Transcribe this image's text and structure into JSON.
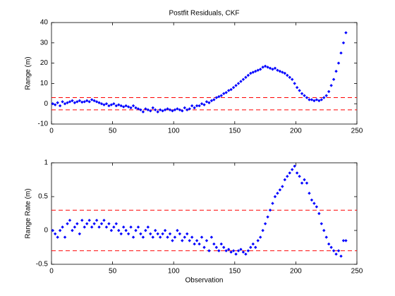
{
  "chart_data": [
    {
      "type": "scatter",
      "title": "Postfit Residuals, CKF",
      "y_label": "Range (m)",
      "x": [
        1,
        3,
        5,
        7,
        9,
        11,
        13,
        15,
        17,
        19,
        21,
        23,
        25,
        27,
        29,
        31,
        33,
        35,
        37,
        39,
        41,
        43,
        45,
        47,
        49,
        51,
        53,
        55,
        57,
        59,
        61,
        63,
        65,
        67,
        69,
        71,
        73,
        75,
        77,
        79,
        81,
        83,
        85,
        87,
        89,
        91,
        93,
        95,
        97,
        99,
        101,
        103,
        105,
        107,
        109,
        111,
        113,
        115,
        117,
        119,
        121,
        123,
        125,
        127,
        129,
        131,
        133,
        135,
        137,
        139,
        141,
        143,
        145,
        147,
        149,
        151,
        153,
        155,
        157,
        159,
        161,
        163,
        165,
        167,
        169,
        171,
        173,
        175,
        177,
        179,
        181,
        183,
        185,
        187,
        189,
        191,
        193,
        195,
        197,
        199,
        201,
        203,
        205,
        207,
        209,
        211,
        213,
        215,
        217,
        219,
        221,
        223,
        225,
        227,
        229,
        231,
        233,
        235,
        237,
        239,
        241
      ],
      "series": [
        {
          "color": "#0000ff",
          "values": [
            0,
            -0.5,
            0.5,
            -1,
            1,
            0,
            0.5,
            1,
            1.5,
            0.5,
            1,
            1.5,
            0.8,
            1,
            1.5,
            1,
            2,
            1.5,
            1,
            0.5,
            0,
            -0.5,
            0,
            -1,
            -0.5,
            0,
            -1,
            -0.5,
            -1,
            -1.5,
            -1,
            -1.5,
            -2,
            -1,
            -2,
            -2.5,
            -3,
            -4,
            -2.5,
            -3,
            -3.5,
            -2,
            -3,
            -4,
            -3,
            -3.5,
            -3,
            -2.5,
            -3,
            -3.5,
            -3,
            -2.5,
            -3,
            -3.5,
            -2,
            -3,
            -2.5,
            -1,
            -2,
            -1,
            -1,
            0,
            -0.5,
            1,
            0.5,
            1.5,
            2,
            3,
            3.5,
            4,
            5,
            5.5,
            6.5,
            7,
            8,
            9,
            10,
            11,
            12,
            13,
            14,
            15,
            15.5,
            16,
            16.5,
            17,
            18,
            18.5,
            18,
            17.5,
            17,
            17.5,
            16.5,
            16,
            15.5,
            15,
            14,
            13,
            12,
            10,
            8,
            6.5,
            5,
            4,
            3,
            2,
            2,
            1.5,
            2,
            1.5,
            2,
            3,
            4,
            6,
            9,
            12,
            16,
            20,
            25,
            30,
            35
          ]
        }
      ],
      "hlines": [
        3,
        -3
      ],
      "hline_color": "#ff0000",
      "xlim": [
        0,
        250
      ],
      "xticks": [
        0,
        50,
        100,
        150,
        200,
        250
      ],
      "ylim": [
        -10,
        40
      ],
      "yticks": [
        -10,
        0,
        10,
        20,
        30,
        40
      ]
    },
    {
      "type": "scatter",
      "x_label": "Observation",
      "y_label": "Range Rate (m)",
      "x": [
        1,
        3,
        5,
        7,
        9,
        11,
        13,
        15,
        17,
        19,
        21,
        23,
        25,
        27,
        29,
        31,
        33,
        35,
        37,
        39,
        41,
        43,
        45,
        47,
        49,
        51,
        53,
        55,
        57,
        59,
        61,
        63,
        65,
        67,
        69,
        71,
        73,
        75,
        77,
        79,
        81,
        83,
        85,
        87,
        89,
        91,
        93,
        95,
        97,
        99,
        101,
        103,
        105,
        107,
        109,
        111,
        113,
        115,
        117,
        119,
        121,
        123,
        125,
        127,
        129,
        131,
        133,
        135,
        137,
        139,
        141,
        143,
        145,
        147,
        149,
        151,
        153,
        155,
        157,
        159,
        161,
        163,
        165,
        167,
        169,
        171,
        173,
        175,
        177,
        179,
        181,
        183,
        185,
        187,
        189,
        191,
        193,
        195,
        197,
        199,
        201,
        203,
        205,
        207,
        209,
        211,
        213,
        215,
        217,
        219,
        221,
        223,
        225,
        227,
        229,
        231,
        233,
        235,
        237,
        239,
        241
      ],
      "series": [
        {
          "color": "#0000ff",
          "values": [
            0,
            -0.05,
            -0.1,
            0,
            0.05,
            -0.1,
            0.1,
            0.15,
            0,
            0.05,
            0.1,
            -0.05,
            0.15,
            0.05,
            0.1,
            0.15,
            0.05,
            0.1,
            0.15,
            0.05,
            0.1,
            0.15,
            0.05,
            0.1,
            0,
            0.05,
            0.1,
            0,
            -0.05,
            0.05,
            0,
            -0.05,
            0.05,
            -0.1,
            0,
            0.05,
            -0.05,
            -0.1,
            0,
            0.05,
            -0.05,
            -0.1,
            0,
            -0.05,
            -0.1,
            -0.05,
            0,
            -0.1,
            -0.05,
            -0.15,
            -0.1,
            0,
            -0.05,
            -0.15,
            -0.1,
            -0.05,
            -0.15,
            -0.1,
            -0.2,
            -0.15,
            -0.2,
            -0.1,
            -0.25,
            -0.15,
            -0.3,
            -0.1,
            -0.2,
            -0.25,
            -0.3,
            -0.2,
            -0.25,
            -0.3,
            -0.28,
            -0.32,
            -0.3,
            -0.35,
            -0.3,
            -0.28,
            -0.32,
            -0.35,
            -0.3,
            -0.25,
            -0.2,
            -0.25,
            -0.15,
            -0.1,
            0,
            0.1,
            0.2,
            0.3,
            0.4,
            0.5,
            0.55,
            0.6,
            0.65,
            0.75,
            0.8,
            0.85,
            0.9,
            0.95,
            0.85,
            0.8,
            0.7,
            0.75,
            0.7,
            0.55,
            0.45,
            0.4,
            0.35,
            0.25,
            0.1,
            0,
            -0.1,
            -0.2,
            -0.25,
            -0.3,
            -0.35,
            -0.3,
            -0.38,
            -0.15,
            -0.15
          ]
        }
      ],
      "hlines": [
        0.3,
        -0.3
      ],
      "hline_color": "#ff0000",
      "xlim": [
        0,
        250
      ],
      "xticks": [
        0,
        50,
        100,
        150,
        200,
        250
      ],
      "ylim": [
        -0.5,
        1
      ],
      "yticks": [
        -0.5,
        0,
        0.5,
        1
      ]
    }
  ]
}
